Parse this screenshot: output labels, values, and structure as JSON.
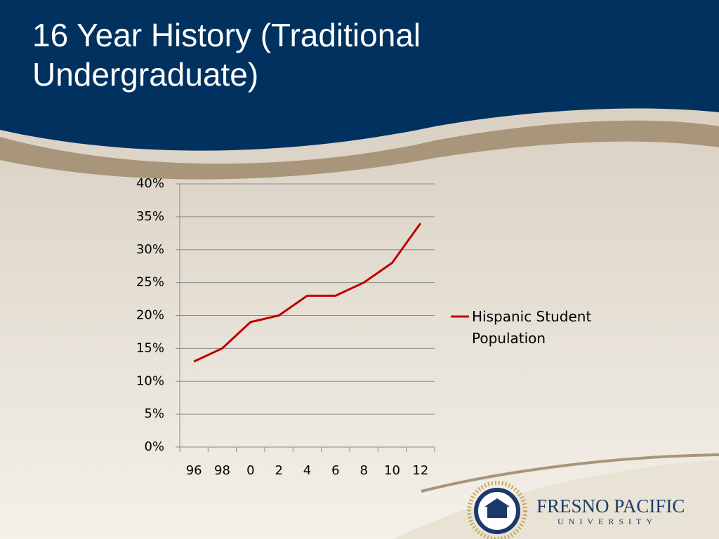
{
  "chart_data": {
    "type": "line",
    "title": "16 Year History (Traditional Undergraduate)",
    "categories": [
      "96",
      "98",
      "0",
      "2",
      "4",
      "6",
      "8",
      "10",
      "12"
    ],
    "series": [
      {
        "name": "Hispanic Student Population",
        "color": "#c00000",
        "values": [
          13,
          15,
          19,
          20,
          23,
          23,
          25,
          28,
          34
        ]
      }
    ],
    "ylim": [
      0,
      40
    ],
    "yticks": [
      {
        "value": 0,
        "label": "0%"
      },
      {
        "value": 5,
        "label": "5%"
      },
      {
        "value": 10,
        "label": "10%"
      },
      {
        "value": 15,
        "label": "15%"
      },
      {
        "value": 20,
        "label": "20%"
      },
      {
        "value": 25,
        "label": "25%"
      },
      {
        "value": 30,
        "label": "30%"
      },
      {
        "value": 35,
        "label": "35%"
      },
      {
        "value": 40,
        "label": "40%"
      }
    ],
    "grid": true,
    "legend": "right"
  },
  "logo": {
    "name": "FRESNO PACIFIC",
    "subtitle": "UNIVERSITY"
  }
}
